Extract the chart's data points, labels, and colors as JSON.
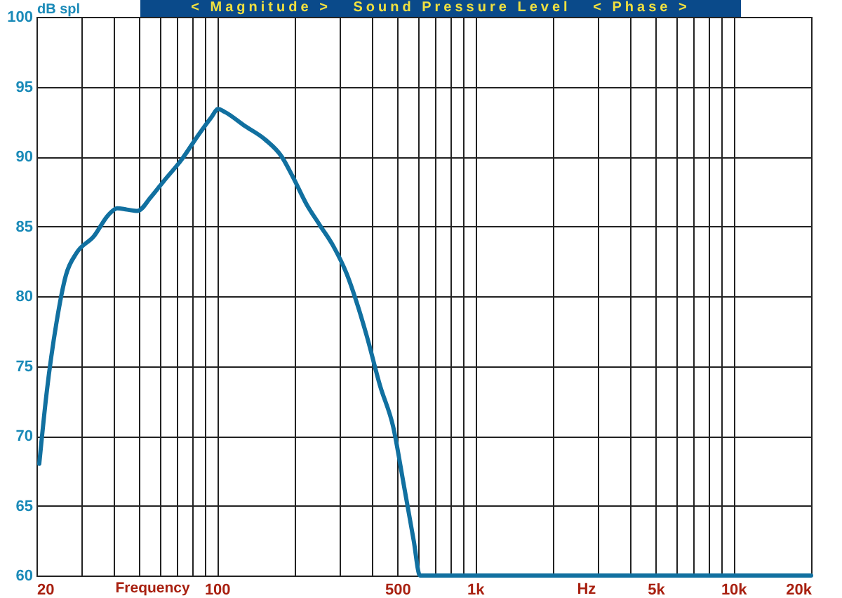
{
  "chart_data": {
    "type": "line",
    "title": "< Magnitude >   Sound Pressure Level   < Phase >",
    "ylabel": "dB spl",
    "xlabel": "Frequency",
    "annotations": [
      "Hz"
    ],
    "log": "x",
    "grid": true,
    "line_style": "solid",
    "xlim": [
      20,
      20000
    ],
    "ylim": [
      60,
      100
    ],
    "xticks": [
      20,
      {
        "value": 30,
        "label": null
      },
      {
        "value": 40,
        "label": null
      },
      {
        "value": 50,
        "label": null
      },
      {
        "value": 60,
        "label": null
      },
      {
        "value": 70,
        "label": null
      },
      {
        "value": 80,
        "label": null
      },
      {
        "value": 90,
        "label": null
      },
      100,
      {
        "value": 200,
        "label": null
      },
      {
        "value": 300,
        "label": null
      },
      {
        "value": 400,
        "label": null
      },
      500,
      {
        "value": 600,
        "label": null
      },
      {
        "value": 700,
        "label": null
      },
      {
        "value": 800,
        "label": null
      },
      {
        "value": 900,
        "label": null
      },
      {
        "value": 1000,
        "label": "1k"
      },
      {
        "value": 2000,
        "label": null
      },
      {
        "value": 3000,
        "label": null
      },
      {
        "value": 4000,
        "label": null
      },
      {
        "value": 5000,
        "label": "5k"
      },
      {
        "value": 6000,
        "label": null
      },
      {
        "value": 7000,
        "label": null
      },
      {
        "value": 8000,
        "label": null
      },
      {
        "value": 9000,
        "label": null
      },
      {
        "value": 10000,
        "label": "10k"
      },
      {
        "value": 20000,
        "label": "20k"
      }
    ],
    "yticks": [
      60,
      65,
      70,
      75,
      80,
      85,
      90,
      95,
      100
    ],
    "x": [
      20.5,
      21.9,
      23.9,
      26,
      28.6,
      33.4,
      37.9,
      41.1,
      44.8,
      49.2,
      55.5,
      62.6,
      73.1,
      84.4,
      95,
      101,
      107,
      128,
      154,
      178,
      196,
      222,
      250,
      282,
      318,
      347,
      381,
      428,
      482,
      529,
      578,
      611,
      20000
    ],
    "series": [
      {
        "color": "#1170a0",
        "values": [
          68,
          73.1,
          78.1,
          81.5,
          83.1,
          84.3,
          85.8,
          86.3,
          86.2,
          86.1,
          87.1,
          88.3,
          89.8,
          91.5,
          92.8,
          93.4,
          93.2,
          92.2,
          91.2,
          90,
          88.6,
          86.6,
          85.1,
          83.6,
          81.6,
          79.6,
          77.1,
          73.6,
          70.6,
          66.5,
          62.5,
          60,
          60
        ]
      }
    ]
  }
}
